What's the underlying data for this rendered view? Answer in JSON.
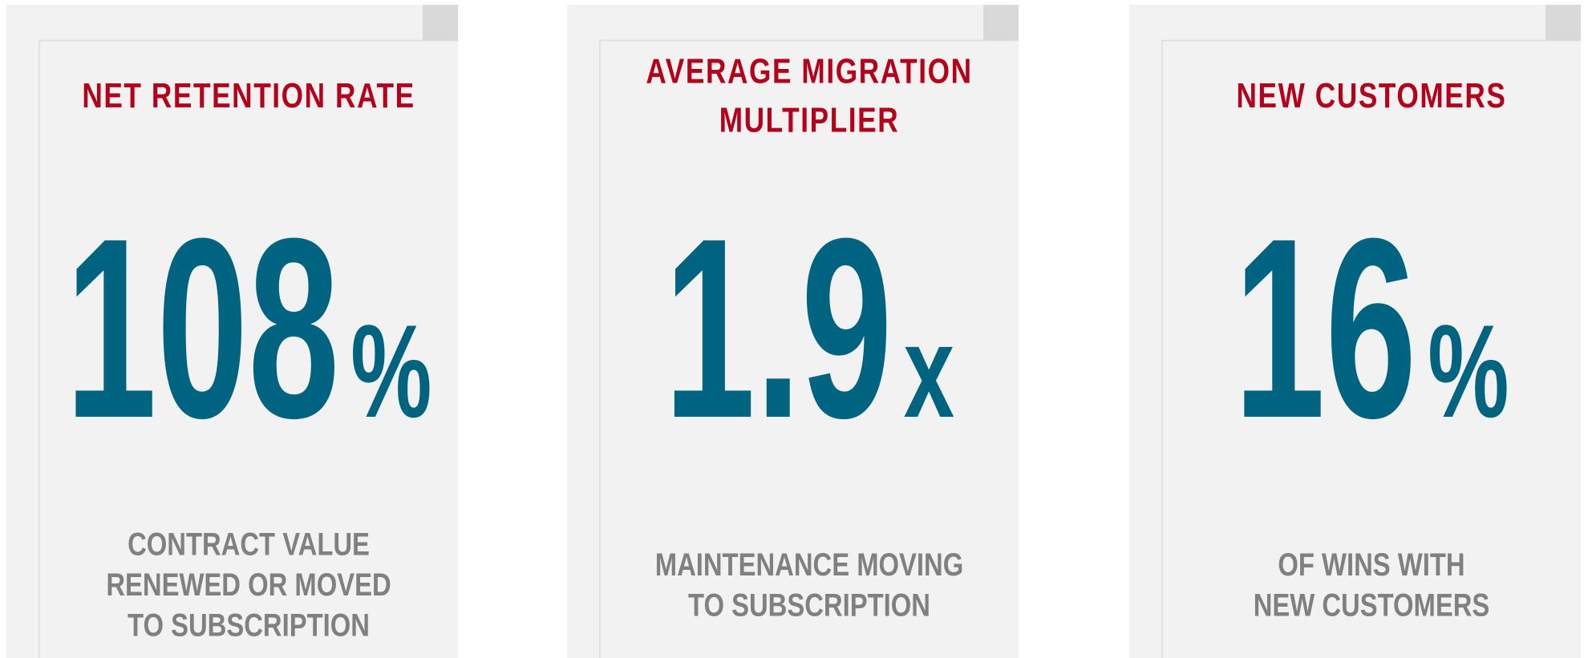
{
  "cards": [
    {
      "title": [
        "NET RETENTION RATE"
      ],
      "value": 108,
      "unit": "%",
      "description": [
        "CONTRACT VALUE",
        "RENEWED OR MOVED",
        "TO SUBSCRIPTION"
      ]
    },
    {
      "title": [
        "AVERAGE MIGRATION",
        "MULTIPLIER"
      ],
      "value": 1.9,
      "unit": "x",
      "description": [
        "MAINTENANCE MOVING",
        "TO SUBSCRIPTION"
      ]
    },
    {
      "title": [
        "NEW CUSTOMERS"
      ],
      "value": 16,
      "unit": "%",
      "description": [
        "OF WINS WITH",
        "NEW CUSTOMERS"
      ]
    }
  ]
}
